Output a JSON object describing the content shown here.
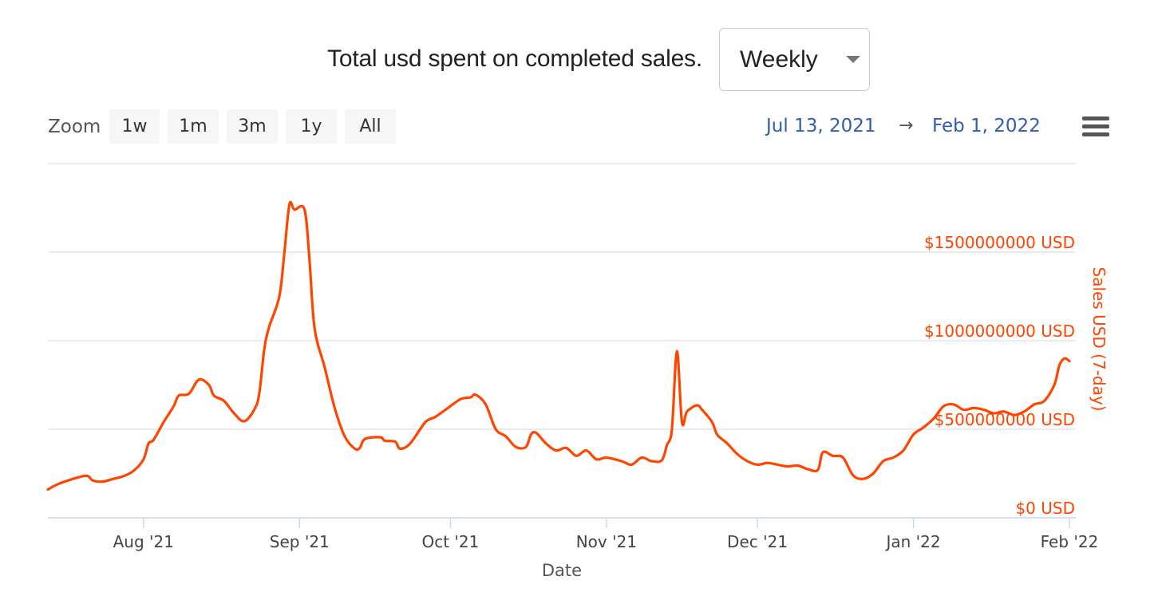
{
  "header": {
    "title": "Total usd spent on completed sales.",
    "period_select": {
      "value": "Weekly"
    }
  },
  "toolbar": {
    "zoom_label": "Zoom",
    "zoom_buttons": [
      "1w",
      "1m",
      "3m",
      "1y",
      "All"
    ],
    "range_from": "Jul 13, 2021",
    "range_arrow": "→",
    "range_to": "Feb 1, 2022",
    "menu_icon": "hamburger-menu-icon"
  },
  "colors": {
    "series": "#ff4500",
    "axis_label": "#ff4500",
    "range_text": "#335cad",
    "gridline": "#e6e6e6"
  },
  "chart_data": {
    "type": "line",
    "x_axis": {
      "title": "Date",
      "range": [
        "2021-07-13",
        "2022-02-01"
      ],
      "ticks": [
        {
          "date": "2021-08-01",
          "label": "Aug '21"
        },
        {
          "date": "2021-09-01",
          "label": "Sep '21"
        },
        {
          "date": "2021-10-01",
          "label": "Oct '21"
        },
        {
          "date": "2021-11-01",
          "label": "Nov '21"
        },
        {
          "date": "2021-12-01",
          "label": "Dec '21"
        },
        {
          "date": "2022-01-01",
          "label": "Jan '22"
        },
        {
          "date": "2022-02-01",
          "label": "Feb '22"
        }
      ]
    },
    "y_axis": {
      "title": "Sales USD (7-day)",
      "position": "right",
      "range": [
        0,
        2000000000
      ],
      "ticks": [
        {
          "value": 0,
          "label": "$0 USD"
        },
        {
          "value": 500000000,
          "label": "$500000000 USD"
        },
        {
          "value": 1000000000,
          "label": "$1000000000 USD"
        },
        {
          "value": 1500000000,
          "label": "$1500000000 USD"
        }
      ]
    },
    "grid": true,
    "legend": "none",
    "series": [
      {
        "points": [
          [
            "2021-07-13",
            160000000
          ],
          [
            "2021-07-15",
            190000000
          ],
          [
            "2021-07-18",
            220000000
          ],
          [
            "2021-07-20",
            235000000
          ],
          [
            "2021-07-21",
            235000000
          ],
          [
            "2021-07-22",
            210000000
          ],
          [
            "2021-07-24",
            205000000
          ],
          [
            "2021-07-26",
            220000000
          ],
          [
            "2021-07-28",
            235000000
          ],
          [
            "2021-07-30",
            265000000
          ],
          [
            "2021-08-01",
            330000000
          ],
          [
            "2021-08-02",
            420000000
          ],
          [
            "2021-08-03",
            440000000
          ],
          [
            "2021-08-05",
            540000000
          ],
          [
            "2021-08-07",
            630000000
          ],
          [
            "2021-08-08",
            690000000
          ],
          [
            "2021-08-10",
            700000000
          ],
          [
            "2021-08-12",
            780000000
          ],
          [
            "2021-08-14",
            750000000
          ],
          [
            "2021-08-15",
            690000000
          ],
          [
            "2021-08-17",
            660000000
          ],
          [
            "2021-08-19",
            590000000
          ],
          [
            "2021-08-21",
            545000000
          ],
          [
            "2021-08-23",
            610000000
          ],
          [
            "2021-08-24",
            700000000
          ],
          [
            "2021-08-25",
            950000000
          ],
          [
            "2021-08-26",
            1080000000
          ],
          [
            "2021-08-28",
            1250000000
          ],
          [
            "2021-08-29",
            1500000000
          ],
          [
            "2021-08-30",
            1770000000
          ],
          [
            "2021-08-31",
            1740000000
          ],
          [
            "2021-09-02",
            1740000000
          ],
          [
            "2021-09-03",
            1450000000
          ],
          [
            "2021-09-04",
            1070000000
          ],
          [
            "2021-09-06",
            850000000
          ],
          [
            "2021-09-08",
            620000000
          ],
          [
            "2021-09-10",
            460000000
          ],
          [
            "2021-09-12",
            390000000
          ],
          [
            "2021-09-13",
            395000000
          ],
          [
            "2021-09-14",
            445000000
          ],
          [
            "2021-09-17",
            455000000
          ],
          [
            "2021-09-18",
            435000000
          ],
          [
            "2021-09-20",
            430000000
          ],
          [
            "2021-09-21",
            390000000
          ],
          [
            "2021-09-23",
            420000000
          ],
          [
            "2021-09-26",
            540000000
          ],
          [
            "2021-09-28",
            570000000
          ],
          [
            "2021-09-30",
            610000000
          ],
          [
            "2021-10-03",
            670000000
          ],
          [
            "2021-10-05",
            680000000
          ],
          [
            "2021-10-06",
            695000000
          ],
          [
            "2021-10-08",
            640000000
          ],
          [
            "2021-10-10",
            500000000
          ],
          [
            "2021-10-12",
            460000000
          ],
          [
            "2021-10-14",
            400000000
          ],
          [
            "2021-10-16",
            400000000
          ],
          [
            "2021-10-17",
            470000000
          ],
          [
            "2021-10-18",
            480000000
          ],
          [
            "2021-10-20",
            420000000
          ],
          [
            "2021-10-22",
            380000000
          ],
          [
            "2021-10-24",
            395000000
          ],
          [
            "2021-10-26",
            350000000
          ],
          [
            "2021-10-28",
            380000000
          ],
          [
            "2021-10-30",
            330000000
          ],
          [
            "2021-11-01",
            340000000
          ],
          [
            "2021-11-04",
            320000000
          ],
          [
            "2021-11-06",
            300000000
          ],
          [
            "2021-11-08",
            340000000
          ],
          [
            "2021-11-10",
            320000000
          ],
          [
            "2021-11-12",
            325000000
          ],
          [
            "2021-11-13",
            410000000
          ],
          [
            "2021-11-14",
            500000000
          ],
          [
            "2021-11-15",
            940000000
          ],
          [
            "2021-11-16",
            540000000
          ],
          [
            "2021-11-17",
            600000000
          ],
          [
            "2021-11-19",
            635000000
          ],
          [
            "2021-11-20",
            610000000
          ],
          [
            "2021-11-22",
            540000000
          ],
          [
            "2021-11-23",
            470000000
          ],
          [
            "2021-11-25",
            420000000
          ],
          [
            "2021-11-27",
            360000000
          ],
          [
            "2021-11-29",
            320000000
          ],
          [
            "2021-12-01",
            300000000
          ],
          [
            "2021-12-03",
            310000000
          ],
          [
            "2021-12-05",
            300000000
          ],
          [
            "2021-12-07",
            290000000
          ],
          [
            "2021-12-09",
            295000000
          ],
          [
            "2021-12-11",
            275000000
          ],
          [
            "2021-12-13",
            270000000
          ],
          [
            "2021-12-14",
            370000000
          ],
          [
            "2021-12-16",
            350000000
          ],
          [
            "2021-12-18",
            340000000
          ],
          [
            "2021-12-20",
            240000000
          ],
          [
            "2021-12-22",
            220000000
          ],
          [
            "2021-12-24",
            250000000
          ],
          [
            "2021-12-26",
            320000000
          ],
          [
            "2021-12-28",
            340000000
          ],
          [
            "2021-12-30",
            380000000
          ],
          [
            "2022-01-01",
            470000000
          ],
          [
            "2022-01-03",
            510000000
          ],
          [
            "2022-01-05",
            560000000
          ],
          [
            "2022-01-07",
            630000000
          ],
          [
            "2022-01-09",
            640000000
          ],
          [
            "2022-01-11",
            610000000
          ],
          [
            "2022-01-13",
            620000000
          ],
          [
            "2022-01-15",
            610000000
          ],
          [
            "2022-01-17",
            590000000
          ],
          [
            "2022-01-19",
            600000000
          ],
          [
            "2022-01-21",
            580000000
          ],
          [
            "2022-01-23",
            600000000
          ],
          [
            "2022-01-25",
            640000000
          ],
          [
            "2022-01-27",
            660000000
          ],
          [
            "2022-01-29",
            750000000
          ],
          [
            "2022-01-30",
            860000000
          ],
          [
            "2022-01-31",
            900000000
          ],
          [
            "2022-02-01",
            885000000
          ]
        ]
      }
    ]
  }
}
